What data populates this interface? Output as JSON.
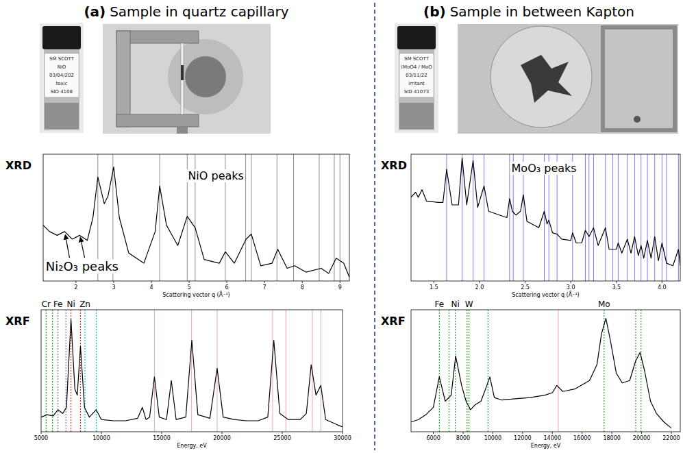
{
  "panels": [
    {
      "letter": "(a)",
      "title": "Sample in quartz capillary",
      "vial_label": [
        "SM SCOTT",
        "NiO",
        "03/04/202",
        "toxic",
        "SID 4108"
      ]
    },
    {
      "letter": "(b)",
      "title": "Sample in between Kapton",
      "vial_label": [
        "SM SCOTT",
        "(MoO4 / MoO",
        "03/11/22",
        "irritant",
        "SID 41073"
      ]
    }
  ],
  "chart_data": [
    {
      "type": "line",
      "title": "XRD",
      "x_label": "Scattering vector q (Å⁻¹)",
      "xlim": [
        1.13,
        9.25
      ],
      "ylim": [
        0,
        100
      ],
      "xticks": [
        2,
        3,
        4,
        5,
        6,
        7,
        8,
        9
      ],
      "tick_labels": "x",
      "color": "#000000",
      "x": [
        1.13,
        1.3,
        1.5,
        1.7,
        1.9,
        2.1,
        2.3,
        2.45,
        2.58,
        2.75,
        2.85,
        3.0,
        3.15,
        3.4,
        3.8,
        4.1,
        4.22,
        4.4,
        4.7,
        4.95,
        5.16,
        5.4,
        5.8,
        5.96,
        6.2,
        6.51,
        6.65,
        6.9,
        7.2,
        7.35,
        7.6,
        7.8,
        8.1,
        8.5,
        8.7,
        8.9,
        9.1,
        9.25
      ],
      "values": [
        44,
        39,
        36,
        39,
        33,
        36,
        32,
        50,
        82,
        61,
        67,
        90,
        50,
        22,
        14,
        39,
        75,
        44,
        28,
        51,
        42,
        17,
        14,
        23,
        14,
        33,
        37,
        12,
        14,
        25,
        10,
        12,
        7,
        10,
        6,
        18,
        14,
        3
      ],
      "reference_lines": {
        "color": "#8c8c8c",
        "values": [
          2.58,
          2.98,
          4.22,
          4.95,
          5.16,
          5.96,
          6.5,
          6.65,
          7.33,
          7.77,
          8.45,
          8.85,
          9.0
        ]
      },
      "annotations": [
        {
          "text": "NiO peaks",
          "x": 4.97,
          "y": 80
        },
        {
          "text": "Ni₂O₃ peaks",
          "x": 1.2,
          "y": 8,
          "arrows": [
            {
              "x": 1.72,
              "y": 37
            },
            {
              "x": 2.12,
              "y": 35
            }
          ]
        }
      ]
    },
    {
      "type": "line",
      "title": "XRD",
      "x_label": "Scattering vector q (Å⁻¹)",
      "xlim": [
        1.25,
        4.2
      ],
      "ylim": [
        0,
        100
      ],
      "xticks": [
        {
          "value": 1.5,
          "label": "1.5"
        },
        {
          "value": 2,
          "label": "2.0"
        },
        {
          "value": 2.5,
          "label": "2.5"
        },
        {
          "value": 3,
          "label": "3.0"
        },
        {
          "value": 3.5,
          "label": "3.5"
        },
        {
          "value": 4,
          "label": "4.0"
        }
      ],
      "tick_labels": "x",
      "color": "#000000",
      "x": [
        1.25,
        1.3,
        1.33,
        1.37,
        1.42,
        1.55,
        1.6,
        1.64,
        1.7,
        1.77,
        1.81,
        1.86,
        1.93,
        1.98,
        2.05,
        2.1,
        2.3,
        2.33,
        2.36,
        2.4,
        2.45,
        2.48,
        2.52,
        2.65,
        2.71,
        2.74,
        2.76,
        2.8,
        2.85,
        2.9,
        3.0,
        3.02,
        3.06,
        3.12,
        3.16,
        3.2,
        3.25,
        3.3,
        3.38,
        3.42,
        3.5,
        3.52,
        3.56,
        3.62,
        3.66,
        3.7,
        3.74,
        3.77,
        3.8,
        3.84,
        3.88,
        3.92,
        3.96,
        4.0,
        4.05,
        4.12,
        4.18,
        4.2
      ],
      "values": [
        66,
        70,
        66,
        72,
        63,
        62,
        62,
        88,
        60,
        60,
        97,
        60,
        95,
        58,
        75,
        55,
        50,
        65,
        55,
        52,
        55,
        68,
        47,
        42,
        55,
        45,
        48,
        38,
        37,
        33,
        32,
        38,
        30,
        30,
        40,
        35,
        42,
        28,
        42,
        25,
        25,
        30,
        22,
        33,
        22,
        35,
        20,
        28,
        18,
        32,
        18,
        35,
        16,
        30,
        14,
        12,
        25,
        12
      ],
      "reference_lines": {
        "color": "#7b7bef",
        "values": [
          1.64,
          1.81,
          1.93,
          2.05,
          2.33,
          2.37,
          2.48,
          2.71,
          2.76,
          2.85,
          3.02,
          3.16,
          3.2,
          3.25,
          3.38,
          3.46,
          3.52,
          3.62,
          3.7,
          3.77,
          3.84,
          3.92,
          4.0,
          4.05,
          4.18
        ]
      },
      "annotations": [
        {
          "text": "MoO₃ peaks",
          "x": 2.35,
          "y": 86
        }
      ]
    },
    {
      "type": "line",
      "title": "XRF",
      "x_label": "Energy, eV",
      "xlim": [
        5000,
        30000
      ],
      "ylim": [
        0,
        100
      ],
      "xticks": [
        5000,
        10000,
        15000,
        20000,
        25000,
        30000
      ],
      "tick_labels": "x",
      "color": "#000000",
      "x": [
        5000,
        5500,
        6000,
        6400,
        6800,
        7100,
        7478,
        7800,
        8000,
        8265,
        8600,
        9000,
        9570,
        10000,
        11000,
        12000,
        13000,
        13400,
        13700,
        14000,
        14400,
        14800,
        15400,
        15800,
        16200,
        17000,
        17500,
        18000,
        19000,
        19600,
        20100,
        21000,
        22000,
        23000,
        23800,
        24300,
        24800,
        25500,
        26500,
        27000,
        27400,
        27800,
        28200,
        28600,
        29500,
        30000
      ],
      "values": [
        12,
        14,
        13,
        18,
        15,
        20,
        92,
        35,
        30,
        70,
        20,
        12,
        18,
        10,
        9,
        9,
        11,
        20,
        10,
        12,
        45,
        12,
        10,
        42,
        10,
        12,
        75,
        14,
        11,
        52,
        12,
        10,
        9,
        9,
        12,
        75,
        15,
        10,
        10,
        15,
        55,
        30,
        38,
        10,
        6,
        4
      ],
      "line_style": "dotted",
      "element_lines": [
        {
          "name": "Cr",
          "color": "#2ca02c",
          "values": [
            5415,
            5947
          ]
        },
        {
          "name": "Fe",
          "color": "#9467bd",
          "values": [
            6404,
            7058
          ]
        },
        {
          "name": "Ni",
          "color": "#d62728",
          "values": [
            7478,
            8265
          ]
        },
        {
          "name": "Zn",
          "color": "#17becf",
          "values": [
            8639,
            9572
          ]
        }
      ],
      "reference_lines": {
        "color": "#e8a9b1",
        "values": [
          14400,
          17480,
          19600,
          24200,
          25300,
          27500,
          28200
        ]
      }
    },
    {
      "type": "line",
      "title": "XRF",
      "x_label": "Energy, eV",
      "xlim": [
        4500,
        22600
      ],
      "ylim": [
        0,
        100
      ],
      "xticks": [
        6000,
        8000,
        10000,
        12000,
        14000,
        16000,
        18000,
        20000,
        22000
      ],
      "tick_labels": "x",
      "color": "#000000",
      "x": [
        4500,
        5000,
        5500,
        6000,
        6400,
        6800,
        7200,
        7500,
        7900,
        8200,
        8500,
        8800,
        9200,
        9600,
        9800,
        10100,
        10600,
        11500,
        12500,
        13500,
        14000,
        14300,
        14700,
        15500,
        16500,
        17000,
        17300,
        17600,
        17900,
        18300,
        18700,
        19200,
        19600,
        19900,
        20200,
        20600,
        21000,
        21500,
        22000
      ],
      "values": [
        8,
        10,
        14,
        20,
        45,
        25,
        30,
        62,
        38,
        25,
        18,
        22,
        25,
        38,
        45,
        28,
        26,
        27,
        28,
        30,
        32,
        38,
        33,
        35,
        42,
        55,
        80,
        93,
        75,
        48,
        40,
        42,
        58,
        65,
        50,
        25,
        15,
        8,
        3
      ],
      "line_style": "dotted",
      "element_lines": [
        {
          "name": "Fe",
          "color": "#2ca02c",
          "values": [
            6404,
            7058
          ]
        },
        {
          "name": "Ni",
          "color": "#2ca02c",
          "values": [
            7478,
            8265
          ]
        },
        {
          "name": "W",
          "color": "#2ca02c",
          "values": [
            8398,
            9672
          ]
        },
        {
          "name": "Mo",
          "color": "#2ca02c",
          "values": [
            17479,
            19608,
            19965
          ]
        }
      ],
      "reference_lines": {
        "color": "#e8a9b1",
        "values": [
          14400
        ]
      }
    }
  ]
}
